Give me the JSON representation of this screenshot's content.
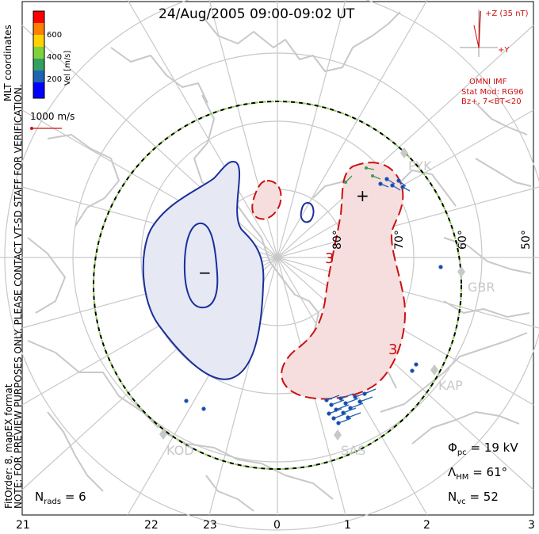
{
  "title": "24/Aug/2005 09:00-09:02 UT",
  "notes": {
    "preview": "NOTE: FOR PREVIEW PURPOSES ONLY. PLEASE CONTACT VT-SD STAFF FOR VERIFICATION.",
    "fit": "FitOrder: 8, mapEX format",
    "coords": "MLT coordinates"
  },
  "colorbar": {
    "title": "Vel [m/s]",
    "ticks": [
      "600",
      "400",
      "200"
    ],
    "colors": [
      "#ff0000",
      "#ff7f00",
      "#ffd200",
      "#7fd23c",
      "#32a060",
      "#1e64b4",
      "#0000ff"
    ]
  },
  "vector_scale": {
    "label": "1000 m/s"
  },
  "imf": {
    "z_label": "+Z (35 nT)",
    "y_label": "+Y",
    "omni": "OMNI IMF",
    "model": "Stat Mod: RG96",
    "condition": "Bz+, 7<BT<20"
  },
  "mlt_labels": [
    "21",
    "22",
    "23",
    "0",
    "1",
    "2",
    "3"
  ],
  "latitude_labels": [
    "80°",
    "70°",
    "60°",
    "50°"
  ],
  "stations": [
    "PYK",
    "GBR",
    "KAP",
    "SAS",
    "KOD"
  ],
  "contour_labels": [
    "3",
    "3"
  ],
  "markers": {
    "min": "−",
    "max": "+"
  },
  "stats": {
    "phi_sym": "Φ",
    "phi_sub": "pc",
    "phi_value": "= 19 kV",
    "lambda_sym": "Λ",
    "lambda_sub": "HM",
    "lambda_value": "= 61°",
    "nvc_sym": "N",
    "nvc_sub": "vc",
    "nvc_value": "= 52",
    "nrads_sym": "N",
    "nrads_sub": "rads",
    "nrads_value": "= 6"
  },
  "colors": {
    "negative_contour": "#1a2f9a",
    "positive_contour": "#cc1111",
    "negative_fill": "#e6e8f4",
    "positive_fill": "#f6dede",
    "grid": "#c8c8c8",
    "coast": "#c8c8c8",
    "boundary_green": "#8fd14f"
  }
}
